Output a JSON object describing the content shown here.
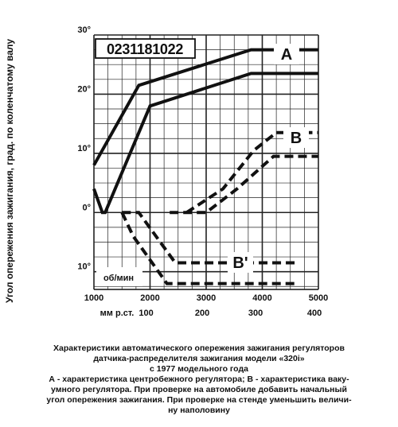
{
  "chart_data": {
    "type": "line",
    "ylabel": "Угол опережения зажигания, град. по коленчатому валу",
    "x_primary": {
      "ticks": [
        1000,
        2000,
        3000,
        4000,
        5000
      ],
      "unit_label": "об/мин"
    },
    "x_secondary": {
      "ticks": [
        100,
        200,
        300,
        400
      ],
      "unit_label": "мм р.ст."
    },
    "y_ticks": [
      {
        "value": 30,
        "label": "30°"
      },
      {
        "value": 20,
        "label": "20°"
      },
      {
        "value": 10,
        "label": "10°"
      },
      {
        "value": 0,
        "label": "0°"
      },
      {
        "value": -10,
        "label": "10°"
      }
    ],
    "ylim": [
      -13,
      30
    ],
    "xlim": [
      1000,
      5000
    ],
    "grid": true,
    "annotations": {
      "part_number": "0231181022"
    },
    "series": [
      {
        "name": "A",
        "style": "solid",
        "points": [
          [
            1000,
            8
          ],
          [
            1800,
            21.5
          ],
          [
            3800,
            27.5
          ],
          [
            5000,
            27.5
          ]
        ]
      },
      {
        "name": "",
        "style": "solid",
        "points": [
          [
            1000,
            4
          ],
          [
            1150,
            0
          ],
          [
            1200,
            0
          ],
          [
            2000,
            18
          ],
          [
            3800,
            23.5
          ],
          [
            5000,
            23.5
          ]
        ]
      },
      {
        "name": "B",
        "style": "dashed",
        "points": [
          [
            2650,
            0
          ],
          [
            3300,
            4
          ],
          [
            3850,
            10.5
          ],
          [
            4250,
            13.5
          ],
          [
            5000,
            13.5
          ]
        ]
      },
      {
        "name": "",
        "style": "dashed",
        "points": [
          [
            2350,
            0
          ],
          [
            3000,
            0
          ],
          [
            3550,
            4
          ],
          [
            4200,
            9.5
          ],
          [
            5000,
            9.5
          ]
        ]
      },
      {
        "name": "B'",
        "style": "dashed",
        "points": [
          [
            1500,
            0
          ],
          [
            1800,
            0
          ],
          [
            2450,
            -8.5
          ],
          [
            3000,
            -8.5
          ],
          [
            4600,
            -8.5
          ]
        ]
      },
      {
        "name": "",
        "style": "dashed",
        "points": [
          [
            1500,
            0
          ],
          [
            1700,
            -4
          ],
          [
            2300,
            -12
          ],
          [
            4600,
            -12
          ]
        ]
      }
    ]
  },
  "caption": {
    "lines": [
      "Характеристики автоматического опережения зажигания регуляторов",
      "датчика-распределителя зажигания модели «320i»",
      "с 1977 модельного года",
      "А - характеристика центробежного регулятора; В - характеристика ваку-",
      "умного регулятора. При проверке на автомобиле добавить начальный",
      "угол опережения зажигания. При проверке на стенде уменьшить величи-",
      "ну наполовину"
    ]
  }
}
